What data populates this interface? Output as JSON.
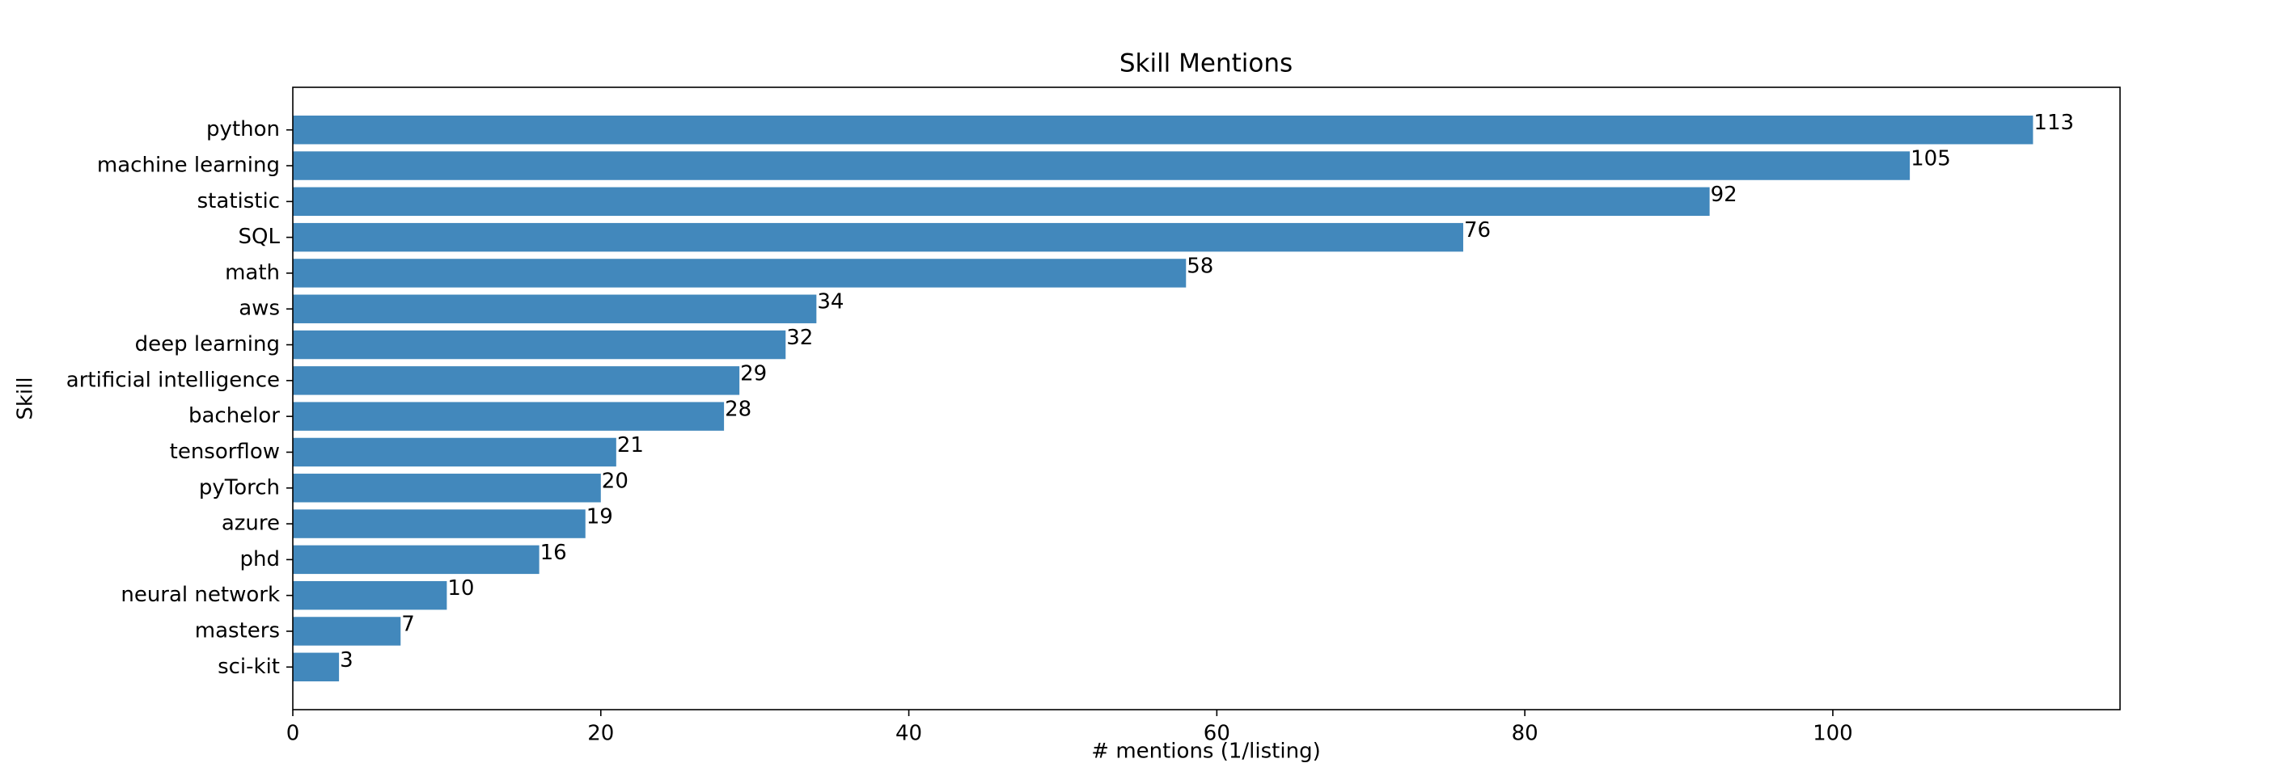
{
  "chart_data": {
    "type": "barh",
    "title": "Skill Mentions",
    "x_label": "# mentions (1/listing)",
    "y_label": "Skill",
    "categories": [
      "python",
      "machine learning",
      "statistic",
      "SQL",
      "math",
      "aws",
      "deep learning",
      "artificial intelligence",
      "bachelor",
      "tensorflow",
      "pyTorch",
      "azure",
      "phd",
      "neural network",
      "masters",
      "sci-kit"
    ],
    "values": [
      113,
      105,
      92,
      76,
      58,
      34,
      32,
      29,
      28,
      21,
      20,
      19,
      16,
      10,
      7,
      3
    ],
    "color": "#4288bc",
    "xlim": [
      0,
      118.65
    ],
    "xticks": [
      0,
      20,
      40,
      60,
      80,
      100
    ],
    "grid": false,
    "value_labels_shown": true
  }
}
